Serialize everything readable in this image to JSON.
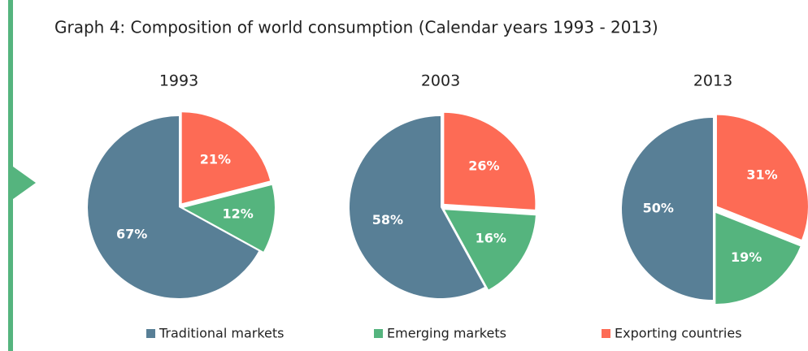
{
  "title": "Graph 4: Composition of world consumption (Calendar years 1993 - 2013)",
  "categories": [
    "Traditional markets",
    "Emerging markets",
    "Exporting countries"
  ],
  "colors": [
    "#587f96",
    "#55b47e",
    "#fd6b55"
  ],
  "chart_data": [
    {
      "type": "pie",
      "title": "1993",
      "values": [
        67,
        12,
        21
      ],
      "value_labels": [
        "67%",
        "12%",
        "21%"
      ]
    },
    {
      "type": "pie",
      "title": "2003",
      "values": [
        58,
        16,
        26
      ],
      "value_labels": [
        "58%",
        "16%",
        "26%"
      ]
    },
    {
      "type": "pie",
      "title": "2013",
      "values": [
        50,
        19,
        31
      ],
      "value_labels": [
        "50%",
        "19%",
        "31%"
      ]
    }
  ]
}
